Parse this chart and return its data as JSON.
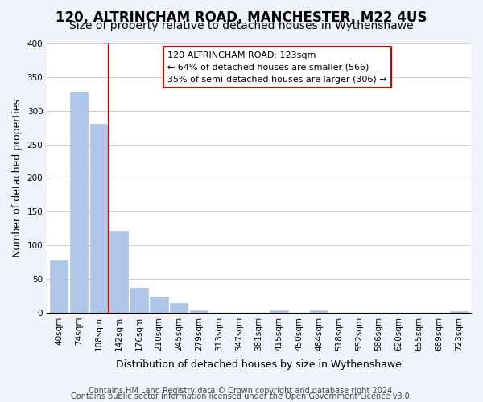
{
  "title": "120, ALTRINCHAM ROAD, MANCHESTER, M22 4US",
  "subtitle": "Size of property relative to detached houses in Wythenshawe",
  "xlabel": "Distribution of detached houses by size in Wythenshawe",
  "ylabel": "Number of detached properties",
  "bar_labels": [
    "40sqm",
    "74sqm",
    "108sqm",
    "142sqm",
    "176sqm",
    "210sqm",
    "245sqm",
    "279sqm",
    "313sqm",
    "347sqm",
    "381sqm",
    "415sqm",
    "450sqm",
    "484sqm",
    "518sqm",
    "552sqm",
    "586sqm",
    "620sqm",
    "655sqm",
    "689sqm",
    "723sqm"
  ],
  "bar_values": [
    77,
    328,
    281,
    122,
    37,
    24,
    14,
    4,
    0,
    0,
    0,
    3,
    0,
    3,
    0,
    0,
    0,
    0,
    0,
    0,
    2
  ],
  "bar_color": "#aec6e8",
  "vline_x": 2.5,
  "vline_color": "#cc0000",
  "annotation_line1": "120 ALTRINCHAM ROAD: 123sqm",
  "annotation_line2": "← 64% of detached houses are smaller (566)",
  "annotation_line3": "35% of semi-detached houses are larger (306) →",
  "ylim": [
    0,
    400
  ],
  "yticks": [
    0,
    50,
    100,
    150,
    200,
    250,
    300,
    350,
    400
  ],
  "footer1": "Contains HM Land Registry data © Crown copyright and database right 2024.",
  "footer2": "Contains public sector information licensed under the Open Government Licence v3.0.",
  "bg_color": "#f0f4fa",
  "plot_bg_color": "#ffffff",
  "title_fontsize": 12,
  "subtitle_fontsize": 10,
  "axis_label_fontsize": 9,
  "tick_fontsize": 7.5,
  "footer_fontsize": 7
}
